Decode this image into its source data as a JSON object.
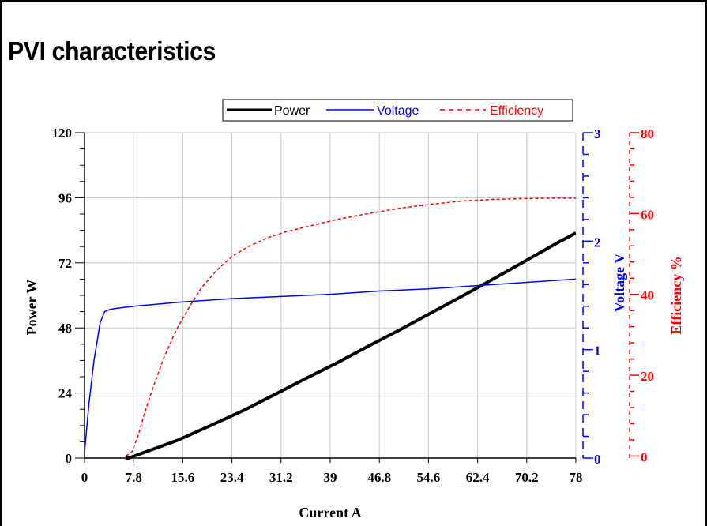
{
  "title": "PVI characteristics",
  "colors": {
    "power": "#000000",
    "voltage": "#0000ff",
    "efficiency": "#ff0000",
    "grid": "#c8c8c8"
  },
  "chart_data": {
    "type": "line",
    "title": "PVI characteristics",
    "xlabel": "Current A",
    "xlim": [
      0,
      78
    ],
    "xticks": [
      "0",
      "7.8",
      "15.6",
      "23.4",
      "31.2",
      "39",
      "46.8",
      "54.6",
      "62.4",
      "70.2",
      "78"
    ],
    "grid": true,
    "legend_position": "top-right",
    "axes": {
      "left": {
        "label": "Power W",
        "ylim": [
          0,
          120
        ],
        "ticks": [
          "0",
          "24",
          "48",
          "72",
          "96",
          "120"
        ]
      },
      "right1": {
        "label": "Voltage V",
        "ylim": [
          0,
          3
        ],
        "ticks": [
          "0",
          "1",
          "2",
          "3"
        ]
      },
      "right2": {
        "label": "Efficiency %",
        "ylim": [
          -0.5,
          80
        ],
        "ticks": [
          "0",
          "20",
          "40",
          "60",
          "80"
        ]
      }
    },
    "series": [
      {
        "name": "Power",
        "axis": "left",
        "style": "solid",
        "width": 4,
        "color": "#000000",
        "points": [
          [
            6.5,
            0
          ],
          [
            7,
            0
          ],
          [
            10,
            2.5
          ],
          [
            15,
            6.8
          ],
          [
            20,
            12
          ],
          [
            25,
            17.3
          ],
          [
            30,
            23.2
          ],
          [
            35,
            29.2
          ],
          [
            40,
            35
          ],
          [
            45,
            41.2
          ],
          [
            50,
            47.2
          ],
          [
            55,
            53.5
          ],
          [
            60,
            59.8
          ],
          [
            65,
            66.2
          ],
          [
            70,
            72.7
          ],
          [
            75,
            79.3
          ],
          [
            78,
            83
          ]
        ]
      },
      {
        "name": "Voltage",
        "axis": "right1",
        "style": "solid",
        "width": 1.5,
        "color": "#0000ff",
        "points": [
          [
            0,
            0.05
          ],
          [
            0.7,
            0.5
          ],
          [
            1.5,
            0.9
          ],
          [
            2.5,
            1.25
          ],
          [
            3.2,
            1.35
          ],
          [
            4,
            1.37
          ],
          [
            5,
            1.38
          ],
          [
            7.8,
            1.4
          ],
          [
            15.6,
            1.44
          ],
          [
            23.4,
            1.47
          ],
          [
            31.2,
            1.49
          ],
          [
            39,
            1.51
          ],
          [
            46.8,
            1.54
          ],
          [
            54.6,
            1.56
          ],
          [
            62.4,
            1.59
          ],
          [
            70.2,
            1.62
          ],
          [
            78,
            1.65
          ]
        ]
      },
      {
        "name": "Efficiency",
        "axis": "right2",
        "style": "dashed",
        "width": 1.5,
        "color": "#ff0000",
        "points": [
          [
            6.6,
            0
          ],
          [
            7.5,
            1
          ],
          [
            8.5,
            5
          ],
          [
            9.5,
            10.5
          ],
          [
            11,
            17.5
          ],
          [
            12.5,
            24
          ],
          [
            14.5,
            31
          ],
          [
            16.5,
            36.5
          ],
          [
            18.5,
            41.5
          ],
          [
            21,
            46
          ],
          [
            23.5,
            49.5
          ],
          [
            26,
            51.8
          ],
          [
            29,
            54
          ],
          [
            32,
            55.5
          ],
          [
            36,
            57
          ],
          [
            40,
            58.5
          ],
          [
            45,
            60
          ],
          [
            50,
            61.3
          ],
          [
            55,
            62.3
          ],
          [
            60,
            63.1
          ],
          [
            65,
            63.5
          ],
          [
            70,
            63.7
          ],
          [
            75,
            63.8
          ],
          [
            78,
            63.8
          ]
        ]
      }
    ]
  }
}
